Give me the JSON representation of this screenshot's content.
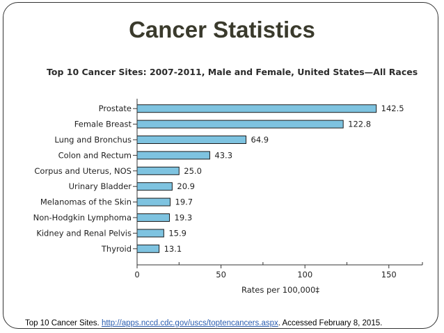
{
  "slide": {
    "title": "Cancer Statistics",
    "footer": {
      "prefix": "Top 10 Cancer Sites. ",
      "link": "http://apps.nccd.cdc.gov/uscs/toptencancers.aspx",
      "suffix": ". Accessed February 8, 2015."
    }
  },
  "colors": {
    "bar_fill": "#7ec3e0",
    "bar_stroke": "#1a1a1a",
    "axis": "#333333"
  },
  "chart_data": {
    "type": "bar",
    "orientation": "horizontal",
    "title": "Top 10 Cancer Sites: 2007-2011, Male and Female, United States—All Races",
    "categories": [
      "Prostate",
      "Female Breast",
      "Lung and Bronchus",
      "Colon and Rectum",
      "Corpus and Uterus, NOS",
      "Urinary Bladder",
      "Melanomas of the Skin",
      "Non-Hodgkin Lymphoma",
      "Kidney and Renal Pelvis",
      "Thyroid"
    ],
    "values": [
      142.5,
      122.8,
      64.9,
      43.3,
      25.0,
      20.9,
      19.7,
      19.3,
      15.9,
      13.1
    ],
    "value_labels": [
      "142.5",
      "122.8",
      "64.9",
      "43.3",
      "25.0",
      "20.9",
      "19.7",
      "19.3",
      "15.9",
      "13.1"
    ],
    "xlabel": "Rates per 100,000‡",
    "ylabel": "",
    "xlim": [
      0,
      170
    ],
    "xticks": [
      0,
      50,
      100,
      150
    ],
    "xtick_labels": [
      "0",
      "50",
      "100",
      "150"
    ],
    "minor_xticks": [
      25,
      75,
      125
    ],
    "grid": false,
    "legend": "none"
  }
}
